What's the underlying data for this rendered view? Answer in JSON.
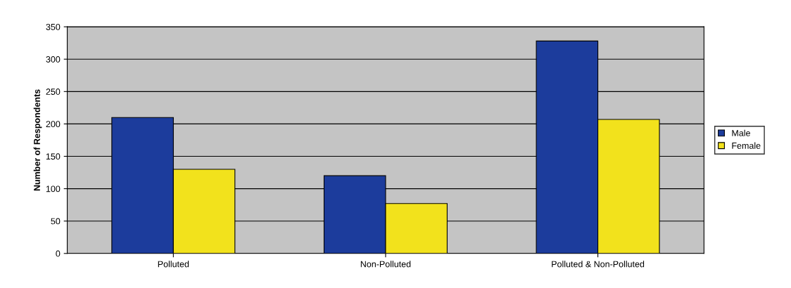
{
  "chart_data": {
    "type": "bar",
    "ylabel": "Number of Respondents",
    "categories": [
      "Polluted",
      "Non-Polluted",
      "Polluted & Non-Polluted"
    ],
    "series": [
      {
        "name": "Male",
        "color": "#1c3c9c",
        "values": [
          210,
          120,
          328
        ]
      },
      {
        "name": "Female",
        "color": "#f2e21c",
        "values": [
          130,
          77,
          207
        ]
      }
    ],
    "ylim": [
      0,
      350
    ],
    "yticks": [
      0,
      50,
      100,
      150,
      200,
      250,
      300,
      350
    ],
    "grid": "y",
    "legend": "right"
  }
}
